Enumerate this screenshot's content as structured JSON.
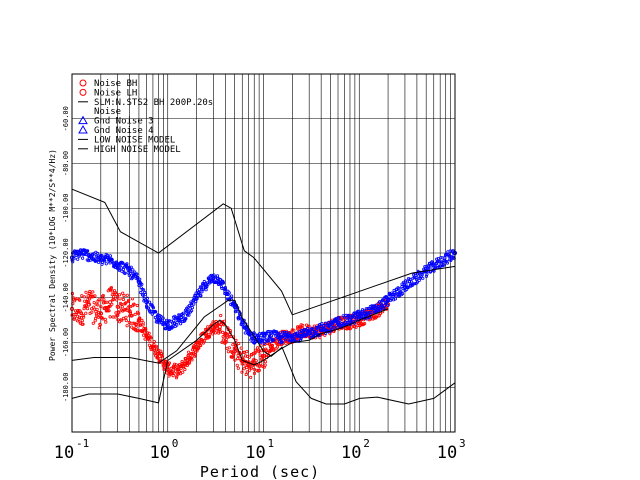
{
  "chart_data": {
    "type": "scatter",
    "title": "",
    "xlabel": "Period (sec)",
    "ylabel": "Power Spectral Density (10*LOG M**2/S**4/Hz)",
    "x_scale": "log",
    "xlim": [
      0.1,
      1000
    ],
    "ylim": [
      -200,
      -40
    ],
    "y_ticks": [
      {
        "value": -60,
        "label": "-60.00"
      },
      {
        "value": -80,
        "label": "-80.00"
      },
      {
        "value": -100,
        "label": "-100.00"
      },
      {
        "value": -120,
        "label": "-120.00"
      },
      {
        "value": -140,
        "label": "-140.00"
      },
      {
        "value": -160,
        "label": "-160.00"
      },
      {
        "value": -180,
        "label": "-180.00"
      }
    ],
    "x_ticks": [
      {
        "value": 0.1,
        "base": "10",
        "exp": "-1"
      },
      {
        "value": 1,
        "base": "10",
        "exp": "0"
      },
      {
        "value": 10,
        "base": "10",
        "exp": "1"
      },
      {
        "value": 100,
        "base": "10",
        "exp": "2"
      },
      {
        "value": 1000,
        "base": "10",
        "exp": "3"
      }
    ],
    "grid": true,
    "legend_position": "top-left",
    "legend": [
      {
        "label": "Noise BH",
        "marker": "circle",
        "color": "#ff0000"
      },
      {
        "label": "Noise LH",
        "marker": "circle",
        "color": "#ff0000"
      },
      {
        "label": "SLM:N.STS2 BH  200P.20s",
        "marker": "line",
        "color": "#000000"
      },
      {
        "label": "Noise",
        "marker": "none",
        "color": "#000000"
      },
      {
        "label": "Gnd Noise 3",
        "marker": "triangle",
        "color": "#0000ff"
      },
      {
        "label": "Gnd Noise 4",
        "marker": "triangle",
        "color": "#0000ff"
      },
      {
        "label": "LOW NOISE MODEL",
        "marker": "line",
        "color": "#000000"
      },
      {
        "label": "HIGH NOISE MODEL",
        "marker": "line",
        "color": "#000000"
      }
    ],
    "series": [
      {
        "name": "Noise BH",
        "style": "scatter",
        "color": "#ff0000",
        "x": [
          0.1,
          0.12,
          0.15,
          0.2,
          0.25,
          0.3,
          0.4,
          0.5,
          0.6,
          0.8,
          1.0,
          1.3,
          1.6,
          2.0,
          2.5,
          3.0,
          3.5,
          4.0,
          5.0,
          6.0,
          7.0,
          8.0,
          10,
          12,
          15,
          20,
          25,
          30,
          40,
          50,
          60,
          80,
          100,
          120,
          150,
          200
        ],
        "y": [
          -145,
          -146,
          -143,
          -147,
          -142,
          -144,
          -146,
          -150,
          -157,
          -165,
          -172,
          -173,
          -168,
          -162,
          -156,
          -153,
          -153,
          -156,
          -164,
          -168,
          -170,
          -169,
          -166,
          -162,
          -158,
          -157,
          -155,
          -155,
          -155,
          -153,
          -151,
          -151,
          -150,
          -148,
          -146,
          -143
        ]
      },
      {
        "name": "Gnd Noise 3",
        "style": "scatter",
        "color": "#0000ff",
        "x": [
          0.1,
          0.12,
          0.15,
          0.2,
          0.25,
          0.3,
          0.4,
          0.5,
          0.6,
          0.8,
          1.0,
          1.3,
          1.6,
          2.0,
          2.5,
          3.0,
          3.5,
          4.0,
          5.0,
          6.0,
          7.0,
          8.0,
          10,
          12,
          15,
          20,
          25,
          30,
          40,
          50,
          60,
          80,
          100,
          120,
          150,
          200,
          300,
          500,
          1000
        ],
        "y": [
          -122,
          -120,
          -121,
          -123,
          -123,
          -125,
          -128,
          -133,
          -142,
          -150,
          -152,
          -150,
          -147,
          -140,
          -134,
          -131,
          -132,
          -137,
          -144,
          -151,
          -156,
          -158,
          -158,
          -157,
          -158,
          -157,
          -157,
          -156,
          -154,
          -153,
          -151,
          -150,
          -148,
          -147,
          -145,
          -141,
          -135,
          -128,
          -120
        ]
      },
      {
        "name": "SLM:N.STS2 BH  200P.20s",
        "style": "line",
        "color": "#000000",
        "x": [
          0.1,
          0.15,
          0.2,
          0.3,
          0.5,
          0.8,
          1.0,
          2.0,
          3.0,
          3.5,
          4.0,
          5.0,
          6.0,
          8.0,
          10,
          15,
          20,
          30,
          40,
          60,
          80,
          100,
          200
        ],
        "y": [
          -185,
          -183,
          -183,
          -183,
          -185,
          -187,
          -168,
          -159,
          -152,
          -150,
          -152,
          -159,
          -168,
          -170,
          -168,
          -163,
          -160,
          -159,
          -156,
          -154,
          -152,
          -150,
          -145
        ]
      },
      {
        "name": "HIGH NOISE MODEL",
        "style": "line",
        "color": "#000000",
        "x": [
          0.1,
          0.22,
          0.32,
          0.8,
          3.8,
          4.6,
          6.3,
          7.9,
          15.4,
          20,
          354.8,
          1000
        ],
        "y": [
          -91.5,
          -97.4,
          -110.5,
          -120,
          -98,
          -100,
          -119,
          -122,
          -137,
          -147.6,
          -129,
          -126
        ]
      },
      {
        "name": "LOW NOISE MODEL",
        "style": "line",
        "color": "#000000",
        "x": [
          0.1,
          0.17,
          0.4,
          0.8,
          1.24,
          2.4,
          4.3,
          5,
          6,
          10,
          12,
          15.6,
          21.9,
          31.6,
          45,
          70,
          101,
          154,
          328,
          600,
          1000
        ],
        "y": [
          -168,
          -166.7,
          -166.7,
          -169.2,
          -163.7,
          -148.6,
          -141.1,
          -141.1,
          -149,
          -163.8,
          -166.2,
          -162.1,
          -177.5,
          -185,
          -187.5,
          -187.5,
          -185,
          -184.4,
          -187.5,
          -185,
          -178
        ]
      }
    ]
  }
}
